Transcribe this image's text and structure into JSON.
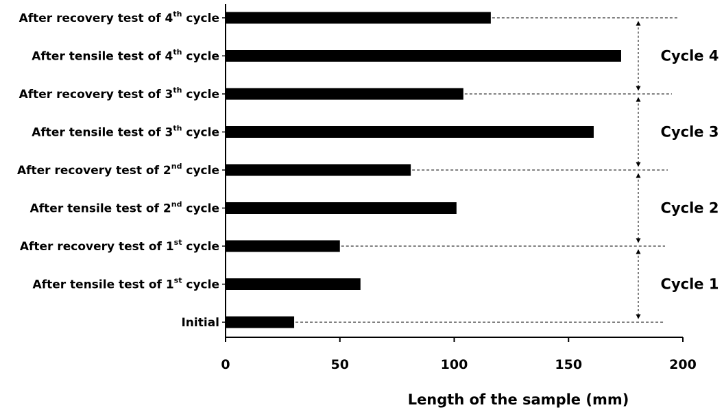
{
  "chart_data": {
    "type": "bar",
    "orientation": "horizontal",
    "xlabel": "Length of the sample (mm)",
    "xlim": [
      0,
      200
    ],
    "xticks": [
      "0",
      "50",
      "100",
      "150",
      "200"
    ],
    "grid": false,
    "bar_color": "#000000",
    "categories": [
      {
        "text": "After recovery test of 4",
        "sup": "th",
        "post": " cycle"
      },
      {
        "text": "After tensile test of 4",
        "sup": "th",
        "post": " cycle"
      },
      {
        "text": "After recovery test of 3",
        "sup": "th",
        "post": " cycle"
      },
      {
        "text": "After tensile test of 3",
        "sup": "th",
        "post": " cycle"
      },
      {
        "text": "After recovery test of 2",
        "sup": "nd",
        "post": " cycle"
      },
      {
        "text": "After tensile test of 2",
        "sup": "nd",
        "post": " cycle"
      },
      {
        "text": "After recovery test of 1",
        "sup": "st",
        "post": " cycle"
      },
      {
        "text": "After tensile test of 1",
        "sup": "st",
        "post": " cycle"
      },
      {
        "text": "Initial",
        "sup": "",
        "post": ""
      }
    ],
    "values": [
      116,
      173,
      104,
      161,
      81,
      101,
      50,
      59,
      30
    ],
    "cycle_labels": [
      "Cycle 4",
      "Cycle 3",
      "Cycle 2",
      "Cycle 1"
    ]
  }
}
